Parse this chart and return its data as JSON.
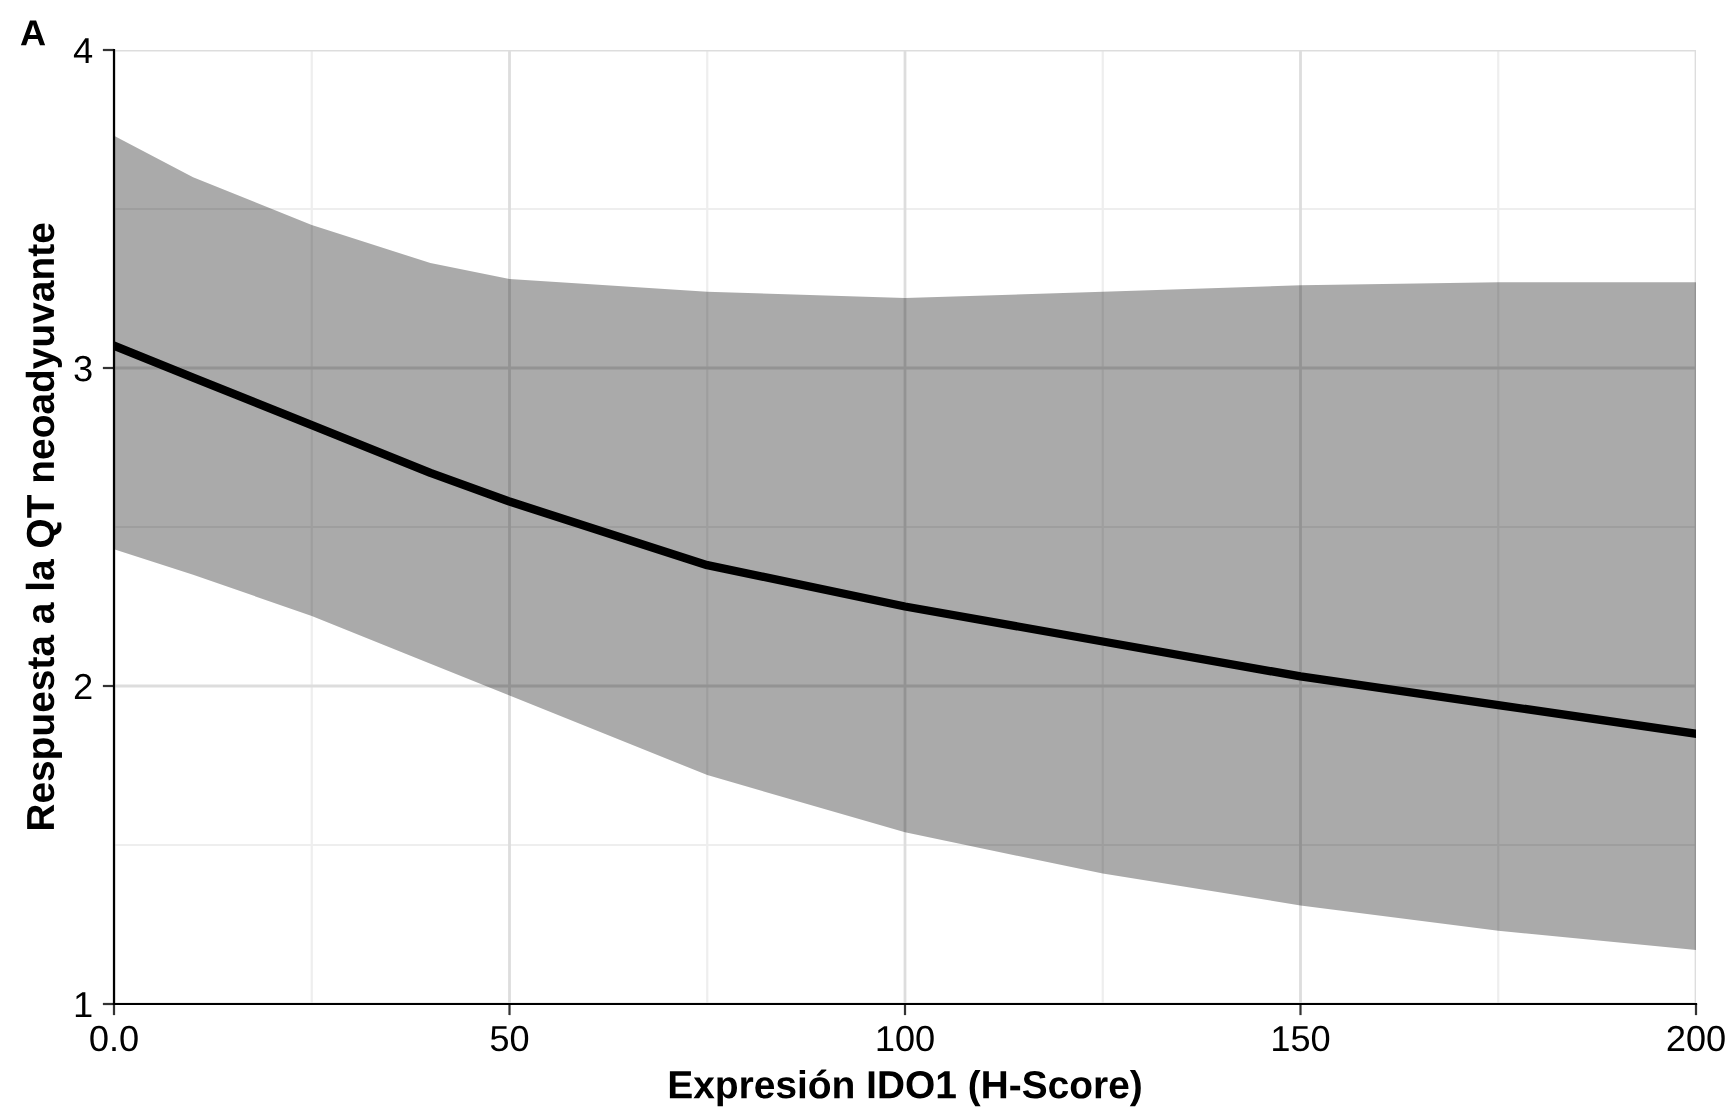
{
  "chart_data": {
    "type": "line",
    "xlabel": "Expresión IDO1 (H-Score)",
    "ylabel": "Respuesta a la QT neoadyuvante",
    "annotations": [
      "A"
    ],
    "x": [
      0,
      10,
      25,
      40,
      50,
      75,
      100,
      125,
      150,
      175,
      200
    ],
    "series": [
      {
        "color": "#000000",
        "values": [
          3.07,
          2.97,
          2.82,
          2.67,
          2.58,
          2.38,
          2.25,
          2.14,
          2.03,
          1.94,
          1.85
        ],
        "lower": [
          2.43,
          2.35,
          2.22,
          2.07,
          1.97,
          1.72,
          1.54,
          1.41,
          1.31,
          1.23,
          1.17
        ],
        "upper": [
          3.73,
          3.6,
          3.45,
          3.33,
          3.28,
          3.24,
          3.22,
          3.24,
          3.26,
          3.27,
          3.27
        ]
      }
    ],
    "xlim": [
      0,
      200
    ],
    "ylim": [
      1,
      4
    ],
    "xticks": [
      {
        "value": 0,
        "label": "0.0"
      },
      50,
      100,
      150,
      200
    ],
    "yticks": [
      1,
      2,
      3,
      4
    ],
    "grid": true,
    "marker": "none",
    "line_style": "solid"
  }
}
